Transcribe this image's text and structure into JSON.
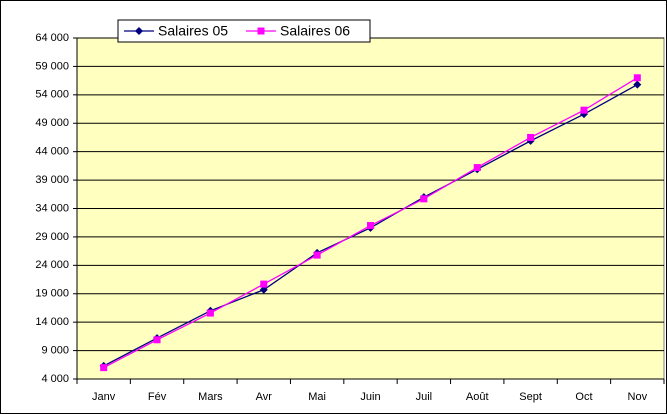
{
  "chart_data": {
    "type": "line",
    "categories": [
      "Janv",
      "Fév",
      "Mars",
      "Avr",
      "Mai",
      "Juin",
      "Juil",
      "Août",
      "Sept",
      "Oct",
      "Nov"
    ],
    "series": [
      {
        "name": "Salaires 05",
        "color": "#000080",
        "marker": "diamond",
        "values": [
          6300,
          11200,
          16000,
          19700,
          26200,
          30600,
          36000,
          40900,
          45900,
          50600,
          55800
        ]
      },
      {
        "name": "Salaires 06",
        "color": "#ff00ff",
        "marker": "square",
        "values": [
          6000,
          10900,
          15600,
          20700,
          25800,
          31000,
          35700,
          41200,
          46500,
          51300,
          57000
        ]
      }
    ],
    "ylim": [
      4000,
      64000
    ],
    "yticks": [
      {
        "value": 4000,
        "label": "4 000"
      },
      {
        "value": 9000,
        "label": "9 000"
      },
      {
        "value": 14000,
        "label": "14 000"
      },
      {
        "value": 19000,
        "label": "19 000"
      },
      {
        "value": 24000,
        "label": "24 000"
      },
      {
        "value": 29000,
        "label": "29 000"
      },
      {
        "value": 34000,
        "label": "34 000"
      },
      {
        "value": 39000,
        "label": "39 000"
      },
      {
        "value": 44000,
        "label": "44 000"
      },
      {
        "value": 49000,
        "label": "49 000"
      },
      {
        "value": 54000,
        "label": "54 000"
      },
      {
        "value": 59000,
        "label": "59 000"
      },
      {
        "value": 64000,
        "label": "64 000"
      }
    ],
    "grid": true,
    "legend": "top"
  }
}
